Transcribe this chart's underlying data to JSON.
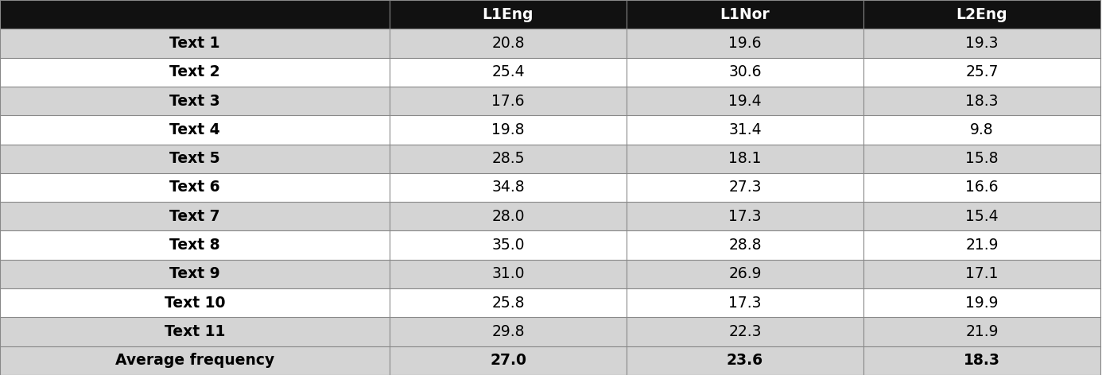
{
  "columns": [
    "",
    "L1Eng",
    "L1Nor",
    "L2Eng"
  ],
  "rows": [
    [
      "Text 1",
      "20.8",
      "19.6",
      "19.3"
    ],
    [
      "Text 2",
      "25.4",
      "30.6",
      "25.7"
    ],
    [
      "Text 3",
      "17.6",
      "19.4",
      "18.3"
    ],
    [
      "Text 4",
      "19.8",
      "31.4",
      "9.8"
    ],
    [
      "Text 5",
      "28.5",
      "18.1",
      "15.8"
    ],
    [
      "Text 6",
      "34.8",
      "27.3",
      "16.6"
    ],
    [
      "Text 7",
      "28.0",
      "17.3",
      "15.4"
    ],
    [
      "Text 8",
      "35.0",
      "28.8",
      "21.9"
    ],
    [
      "Text 9",
      "31.0",
      "26.9",
      "17.1"
    ],
    [
      "Text 10",
      "25.8",
      "17.3",
      "19.9"
    ],
    [
      "Text 11",
      "29.8",
      "22.3",
      "21.9"
    ],
    [
      "Average frequency",
      "27.0",
      "23.6",
      "18.3"
    ]
  ],
  "header_bg": "#111111",
  "header_text_color": "#ffffff",
  "row_colors": [
    "#d4d4d4",
    "#ffffff",
    "#d4d4d4",
    "#ffffff",
    "#d4d4d4",
    "#ffffff",
    "#d4d4d4",
    "#ffffff",
    "#d4d4d4",
    "#ffffff",
    "#d4d4d4",
    "#d4d4d4"
  ],
  "border_color": "#888888",
  "font_size": 13.5,
  "fig_width": 13.86,
  "fig_height": 4.72,
  "dpi": 100
}
